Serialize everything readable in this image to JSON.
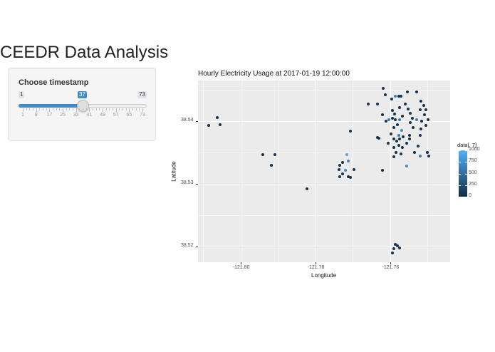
{
  "app": {
    "title": "CEEDR Data Analysis"
  },
  "sidebar": {
    "slider": {
      "label": "Choose timestamp",
      "min": 1,
      "max": 73,
      "value": 37,
      "min_label": "1",
      "max_label": "73",
      "value_label": "37",
      "grid_labels": [
        "1",
        "9",
        "17",
        "25",
        "33",
        "41",
        "49",
        "57",
        "65",
        "73"
      ],
      "accent_color": "#428bca"
    }
  },
  "chart_data": {
    "type": "scatter",
    "title": "Hourly Electricity Usage at 2017-01-19 12:00:00",
    "xlabel": "Longitude",
    "ylabel": "Latitude",
    "x_ticks": [
      -121.8,
      -121.78,
      -121.76
    ],
    "x_tick_labels": [
      "-121.80",
      "-121.78",
      "-121.76"
    ],
    "y_ticks": [
      38.52,
      38.53,
      38.54
    ],
    "y_tick_labels": [
      "38.52",
      "38.53",
      "38.54"
    ],
    "xlim": [
      -121.8114,
      -121.7439
    ],
    "ylim": [
      38.5175,
      38.5465
    ],
    "grid": true,
    "legend": {
      "title": "data[, 7]",
      "position": "right",
      "type": "colorbar",
      "range": [
        0,
        1000
      ],
      "labels": [
        "1000",
        "750",
        "500",
        "250",
        "0"
      ],
      "low_color": "#132b43",
      "high_color": "#56b1f7"
    },
    "points": [
      {
        "lon": -121.8085,
        "lat": 38.5393,
        "v": 60
      },
      {
        "lon": -121.8062,
        "lat": 38.5406,
        "v": 60
      },
      {
        "lon": -121.8054,
        "lat": 38.5394,
        "v": 60
      },
      {
        "lon": -121.794,
        "lat": 38.5347,
        "v": 60
      },
      {
        "lon": -121.7917,
        "lat": 38.533,
        "v": 60
      },
      {
        "lon": -121.7909,
        "lat": 38.5347,
        "v": 60
      },
      {
        "lon": -121.7822,
        "lat": 38.5292,
        "v": 60
      },
      {
        "lon": -121.7706,
        "lat": 38.5384,
        "v": 60
      },
      {
        "lon": -121.7716,
        "lat": 38.5347,
        "v": 900
      },
      {
        "lon": -121.7712,
        "lat": 38.5336,
        "v": 700
      },
      {
        "lon": -121.7726,
        "lat": 38.5334,
        "v": 80
      },
      {
        "lon": -121.7735,
        "lat": 38.533,
        "v": 60
      },
      {
        "lon": -121.7737,
        "lat": 38.5323,
        "v": 60
      },
      {
        "lon": -121.772,
        "lat": 38.5322,
        "v": 700
      },
      {
        "lon": -121.7727,
        "lat": 38.5316,
        "v": 60
      },
      {
        "lon": -121.7734,
        "lat": 38.5312,
        "v": 60
      },
      {
        "lon": -121.7712,
        "lat": 38.5311,
        "v": 60
      },
      {
        "lon": -121.7706,
        "lat": 38.531,
        "v": 60
      },
      {
        "lon": -121.7696,
        "lat": 38.5323,
        "v": 60
      },
      {
        "lon": -121.7658,
        "lat": 38.5428,
        "v": 60
      },
      {
        "lon": -121.7634,
        "lat": 38.5374,
        "v": 60
      },
      {
        "lon": -121.763,
        "lat": 38.5373,
        "v": 60
      },
      {
        "lon": -121.7618,
        "lat": 38.5452,
        "v": 60
      },
      {
        "lon": -121.7612,
        "lat": 38.5442,
        "v": 60
      },
      {
        "lon": -121.7634,
        "lat": 38.5428,
        "v": 60
      },
      {
        "lon": -121.762,
        "lat": 38.541,
        "v": 60
      },
      {
        "lon": -121.7611,
        "lat": 38.54,
        "v": 60
      },
      {
        "lon": -121.762,
        "lat": 38.5322,
        "v": 60
      },
      {
        "lon": -121.7595,
        "lat": 38.5435,
        "v": 60
      },
      {
        "lon": -121.7585,
        "lat": 38.544,
        "v": 650
      },
      {
        "lon": -121.7576,
        "lat": 38.544,
        "v": 60
      },
      {
        "lon": -121.757,
        "lat": 38.544,
        "v": 60
      },
      {
        "lon": -121.7593,
        "lat": 38.5417,
        "v": 60
      },
      {
        "lon": -121.7587,
        "lat": 38.5412,
        "v": 60
      },
      {
        "lon": -121.7575,
        "lat": 38.5422,
        "v": 60
      },
      {
        "lon": -121.7593,
        "lat": 38.5405,
        "v": 60
      },
      {
        "lon": -121.7585,
        "lat": 38.5402,
        "v": 60
      },
      {
        "lon": -121.759,
        "lat": 38.539,
        "v": 60
      },
      {
        "lon": -121.758,
        "lat": 38.5395,
        "v": 60
      },
      {
        "lon": -121.7567,
        "lat": 38.5408,
        "v": 60
      },
      {
        "lon": -121.7554,
        "lat": 38.5447,
        "v": 60
      },
      {
        "lon": -121.756,
        "lat": 38.5428,
        "v": 60
      },
      {
        "lon": -121.7552,
        "lat": 38.542,
        "v": 60
      },
      {
        "lon": -121.7545,
        "lat": 38.5413,
        "v": 60
      },
      {
        "lon": -121.754,
        "lat": 38.5405,
        "v": 60
      },
      {
        "lon": -121.7545,
        "lat": 38.5398,
        "v": 60
      },
      {
        "lon": -121.7538,
        "lat": 38.539,
        "v": 60
      },
      {
        "lon": -121.7603,
        "lat": 38.5402,
        "v": 600
      },
      {
        "lon": -121.7575,
        "lat": 38.5402,
        "v": 600
      },
      {
        "lon": -121.7577,
        "lat": 38.5377,
        "v": 600
      },
      {
        "lon": -121.7568,
        "lat": 38.5385,
        "v": 700
      },
      {
        "lon": -121.7597,
        "lat": 38.538,
        "v": 60
      },
      {
        "lon": -121.759,
        "lat": 38.5372,
        "v": 60
      },
      {
        "lon": -121.7582,
        "lat": 38.5368,
        "v": 60
      },
      {
        "lon": -121.7575,
        "lat": 38.5372,
        "v": 60
      },
      {
        "lon": -121.7565,
        "lat": 38.5375,
        "v": 60
      },
      {
        "lon": -121.7577,
        "lat": 38.5362,
        "v": 60
      },
      {
        "lon": -121.7567,
        "lat": 38.5358,
        "v": 60
      },
      {
        "lon": -121.7555,
        "lat": 38.5365,
        "v": 60
      },
      {
        "lon": -121.7547,
        "lat": 38.5378,
        "v": 60
      },
      {
        "lon": -121.7605,
        "lat": 38.5365,
        "v": 60
      },
      {
        "lon": -121.759,
        "lat": 38.5358,
        "v": 60
      },
      {
        "lon": -121.7583,
        "lat": 38.535,
        "v": 60
      },
      {
        "lon": -121.757,
        "lat": 38.5348,
        "v": 60
      },
      {
        "lon": -121.759,
        "lat": 38.5343,
        "v": 60
      },
      {
        "lon": -121.7556,
        "lat": 38.5328,
        "v": 700
      },
      {
        "lon": -121.7535,
        "lat": 38.535,
        "v": 60
      },
      {
        "lon": -121.7528,
        "lat": 38.5447,
        "v": 60
      },
      {
        "lon": -121.7518,
        "lat": 38.5432,
        "v": 60
      },
      {
        "lon": -121.751,
        "lat": 38.5425,
        "v": 60
      },
      {
        "lon": -121.7503,
        "lat": 38.5418,
        "v": 60
      },
      {
        "lon": -121.752,
        "lat": 38.5418,
        "v": 60
      },
      {
        "lon": -121.7508,
        "lat": 38.541,
        "v": 60
      },
      {
        "lon": -121.7498,
        "lat": 38.5403,
        "v": 60
      },
      {
        "lon": -121.7515,
        "lat": 38.54,
        "v": 60
      },
      {
        "lon": -121.7503,
        "lat": 38.5393,
        "v": 60
      },
      {
        "lon": -121.7528,
        "lat": 38.5402,
        "v": 600
      },
      {
        "lon": -121.7517,
        "lat": 38.5388,
        "v": 60
      },
      {
        "lon": -121.752,
        "lat": 38.5378,
        "v": 60
      },
      {
        "lon": -121.7525,
        "lat": 38.536,
        "v": 60
      },
      {
        "lon": -121.75,
        "lat": 38.535,
        "v": 60
      },
      {
        "lon": -121.7497,
        "lat": 38.5345,
        "v": 60
      },
      {
        "lon": -121.752,
        "lat": 38.5345,
        "v": 600
      },
      {
        "lon": -121.7547,
        "lat": 38.5372,
        "v": 60
      },
      {
        "lon": -121.7585,
        "lat": 38.5203,
        "v": 60
      },
      {
        "lon": -121.758,
        "lat": 38.5201,
        "v": 60
      },
      {
        "lon": -121.759,
        "lat": 38.5197,
        "v": 60
      },
      {
        "lon": -121.7575,
        "lat": 38.5198,
        "v": 60
      },
      {
        "lon": -121.7594,
        "lat": 38.519,
        "v": 60
      }
    ]
  }
}
